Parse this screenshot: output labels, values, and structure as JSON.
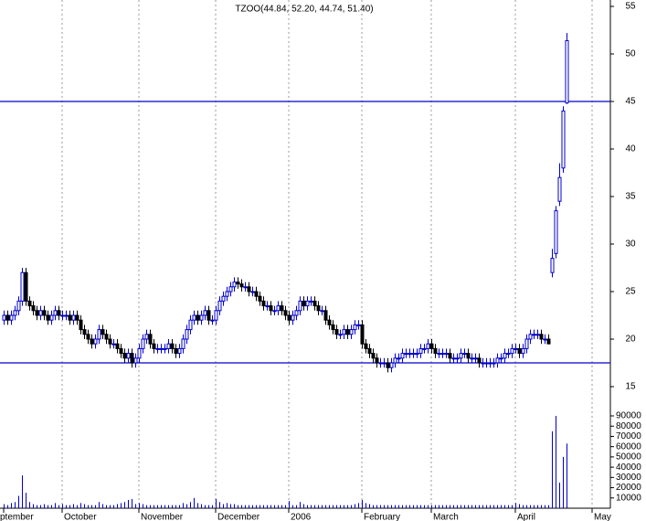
{
  "chart_data": {
    "type": "candlestick",
    "title": "TZOO(44.84, 52.20, 44.74, 51.40)",
    "categories": [
      "ptember",
      null,
      null,
      null,
      null,
      null,
      null,
      null,
      null,
      null,
      null,
      null,
      null,
      null,
      null,
      null,
      "October",
      null,
      null,
      null,
      null,
      null,
      null,
      null,
      null,
      null,
      null,
      null,
      null,
      null,
      null,
      null,
      null,
      null,
      null,
      null,
      null,
      "November",
      null,
      null,
      null,
      null,
      null,
      null,
      null,
      null,
      null,
      null,
      null,
      null,
      null,
      null,
      null,
      null,
      null,
      null,
      null,
      null,
      "December",
      null,
      null,
      null,
      null,
      null,
      null,
      null,
      null,
      null,
      null,
      null,
      null,
      null,
      null,
      null,
      null,
      null,
      null,
      null,
      "2006",
      null,
      null,
      null,
      null,
      null,
      null,
      null,
      null,
      null,
      null,
      null,
      null,
      null,
      null,
      null,
      null,
      null,
      null,
      null,
      "February",
      null,
      null,
      null,
      null,
      null,
      null,
      null,
      null,
      null,
      null,
      null,
      null,
      null,
      null,
      null,
      null,
      null,
      null,
      "March",
      null,
      null,
      null,
      null,
      null,
      null,
      null,
      null,
      null,
      null,
      null,
      null,
      null,
      null,
      null,
      null,
      null,
      null,
      null,
      null,
      null,
      null,
      "April",
      null,
      null,
      null,
      null,
      null,
      null,
      null,
      null,
      null,
      null,
      null,
      null,
      null,
      null,
      null,
      null,
      null,
      null,
      null,
      null,
      "May"
    ],
    "open": [
      22,
      22.5,
      22,
      22.5,
      23,
      24,
      27,
      24,
      23.5,
      23,
      22.5,
      23,
      22.5,
      22,
      22.5,
      23,
      22.5,
      22.5,
      22.5,
      22,
      22.5,
      22,
      21,
      20.5,
      20,
      19.5,
      20,
      21,
      20.5,
      20,
      19.5,
      19.5,
      19,
      18.5,
      18,
      18.5,
      17.5,
      18,
      19,
      20,
      20.5,
      19.5,
      19,
      19,
      19,
      19,
      19.5,
      19,
      18.5,
      19,
      20,
      21,
      22,
      22.5,
      22,
      22.5,
      23,
      22,
      22,
      23,
      24,
      24.5,
      25,
      25.5,
      26,
      25.8,
      25.5,
      25.5,
      25,
      25,
      24.5,
      24,
      23.5,
      23.5,
      23,
      23,
      23.5,
      23,
      22.5,
      22,
      22.5,
      23,
      24,
      23.5,
      24,
      24,
      23.5,
      23,
      23,
      22,
      21.5,
      21,
      20.5,
      20.5,
      21,
      20.5,
      21,
      21.5,
      21.5,
      19.5,
      19,
      18.5,
      18,
      17.5,
      17.5,
      17.5,
      17,
      17.5,
      18,
      18,
      18.5,
      18.5,
      18.5,
      18.5,
      18.5,
      19,
      19,
      19.5,
      19,
      18.5,
      18.5,
      18.5,
      18.5,
      18,
      18,
      18,
      18.5,
      18.5,
      18,
      18,
      18,
      17.5,
      17.5,
      17.5,
      17.5,
      17.5,
      18,
      18,
      18.5,
      18.5,
      19,
      19,
      18.5,
      19,
      20,
      20.5,
      20.5,
      20.5,
      20,
      20,
      27,
      29,
      34.5,
      38,
      44.84,
      null,
      null,
      null,
      null,
      null,
      null,
      null
    ],
    "high": [
      23,
      23,
      23,
      23.5,
      24.5,
      27.5,
      27.5,
      24.5,
      24,
      23.5,
      23.5,
      23.5,
      23,
      23,
      23.5,
      23.5,
      23,
      23,
      23,
      23,
      23,
      22.5,
      21.5,
      21,
      20.5,
      20.5,
      21.5,
      21.5,
      21,
      20.5,
      20,
      20,
      19.5,
      19,
      19,
      19,
      18.5,
      19.5,
      20.5,
      21,
      21,
      20,
      19.5,
      19.5,
      19.5,
      20,
      20,
      19.5,
      19.5,
      20.5,
      21.5,
      22.5,
      23,
      23,
      23,
      23.5,
      23.5,
      22.5,
      23.5,
      24.5,
      25,
      25.5,
      26,
      26.5,
      26.5,
      26.3,
      26,
      26,
      25.5,
      25.5,
      25,
      24.5,
      24,
      24,
      23.5,
      24,
      24,
      23.5,
      23,
      23,
      23.5,
      24.5,
      24.5,
      24.5,
      24.5,
      24.5,
      24,
      23.5,
      23.5,
      22.5,
      22,
      21.5,
      21,
      21.5,
      21.5,
      21.5,
      22,
      22,
      22,
      20,
      19.5,
      19,
      18.5,
      18,
      18,
      18,
      18,
      18.5,
      18.5,
      19,
      19,
      19,
      19,
      19,
      19.5,
      19.5,
      20,
      20,
      19.5,
      19,
      19,
      19,
      19,
      18.5,
      18.5,
      19,
      19,
      19,
      18.5,
      18.5,
      18.5,
      18,
      18,
      18,
      18,
      18.5,
      18.5,
      19,
      19,
      19.5,
      19.5,
      19.5,
      19.5,
      20.5,
      21,
      21,
      21,
      21,
      20.5,
      20.5,
      29.5,
      34,
      38.5,
      44.5,
      52.2,
      null,
      null,
      null,
      null,
      null,
      null,
      null
    ],
    "low": [
      21.5,
      21.5,
      21.5,
      22,
      22.5,
      23.5,
      23.5,
      23,
      22.5,
      22,
      22,
      22,
      21.5,
      21.5,
      22,
      22,
      22,
      22,
      21.5,
      21.5,
      21.5,
      20.5,
      20,
      19.5,
      19,
      19,
      19.5,
      20,
      19.5,
      19,
      19,
      18.5,
      18,
      17.5,
      17.5,
      17,
      17,
      17.5,
      18.5,
      19.5,
      19,
      18.5,
      18.5,
      18.5,
      18.5,
      18.5,
      18.5,
      18,
      18,
      18.5,
      19.5,
      20.5,
      21.5,
      21.5,
      21.5,
      22,
      21.5,
      21.5,
      21.5,
      22.5,
      23.5,
      24,
      24.5,
      25,
      25.3,
      25,
      25,
      24.5,
      24.5,
      24,
      23.5,
      23,
      23,
      22.5,
      22.5,
      22.5,
      22.5,
      22,
      21.5,
      21.5,
      22,
      22.5,
      23,
      23,
      23.5,
      23,
      22.5,
      22.5,
      21.5,
      21,
      20.5,
      20,
      20,
      20,
      20,
      20,
      20.5,
      21,
      19,
      18.5,
      18,
      17.5,
      17,
      17,
      17,
      16.5,
      16.5,
      17,
      17.5,
      17.5,
      18,
      18,
      18,
      18,
      18,
      18.5,
      18.5,
      18.5,
      18,
      18,
      18,
      18,
      17.5,
      17.5,
      17.5,
      17.5,
      18,
      17.5,
      17.5,
      17.5,
      17,
      17,
      17,
      17,
      17,
      17,
      17.5,
      17.5,
      18,
      18,
      18.5,
      18,
      18,
      18.5,
      19.5,
      20,
      20,
      19.5,
      19.5,
      19.5,
      26.5,
      28.5,
      34,
      37.5,
      44.74,
      null,
      null,
      null,
      null,
      null,
      null,
      null
    ],
    "close": [
      22.5,
      22,
      22.5,
      23,
      24,
      27,
      24,
      23.5,
      23,
      22.5,
      23,
      22.5,
      22,
      22.5,
      23,
      22.5,
      22.5,
      22.5,
      22,
      22.5,
      22,
      21,
      20.5,
      20,
      19.5,
      20,
      21,
      20.5,
      20,
      19.5,
      19.5,
      19,
      18.5,
      18,
      18.5,
      17.5,
      18,
      19,
      20,
      20.5,
      19.5,
      19,
      19,
      19,
      19,
      19.5,
      19,
      18.5,
      19,
      20,
      21,
      22,
      22.5,
      22,
      22.5,
      23,
      22,
      22,
      23,
      24,
      24.5,
      25,
      25.5,
      26,
      25.8,
      25.5,
      25.5,
      25,
      25,
      24.5,
      24,
      23.5,
      23.5,
      23,
      23,
      23.5,
      23,
      22.5,
      22,
      22.5,
      23,
      24,
      23.5,
      24,
      24,
      23.5,
      23,
      23,
      22,
      21.5,
      21,
      20.5,
      20.5,
      21,
      20.5,
      21,
      21.5,
      21.5,
      19.5,
      19,
      18.5,
      18,
      17.5,
      17.5,
      17.5,
      17,
      17.5,
      18,
      18,
      18.5,
      18.5,
      18.5,
      18.5,
      18.5,
      19,
      19,
      19.5,
      19,
      18.5,
      18.5,
      18.5,
      18.5,
      18,
      18,
      18,
      18.5,
      18.5,
      18,
      18,
      18,
      17.5,
      17.5,
      17.5,
      17.5,
      17.5,
      18,
      18,
      18.5,
      18.5,
      19,
      19,
      18.5,
      19,
      20,
      20.5,
      20.5,
      20.5,
      20,
      20,
      19.5,
      28.5,
      33.5,
      37,
      44,
      51.4,
      null,
      null,
      null,
      null,
      null,
      null,
      null
    ],
    "volume": [
      4000,
      3000,
      5000,
      6000,
      12000,
      32000,
      15000,
      6000,
      4000,
      3000,
      3000,
      4000,
      3000,
      3000,
      5000,
      3000,
      4000,
      3000,
      3000,
      4000,
      3000,
      5000,
      4000,
      3000,
      3000,
      3000,
      6000,
      4000,
      3000,
      3000,
      3000,
      4000,
      5000,
      6000,
      8000,
      9000,
      4000,
      5000,
      4000,
      3000,
      3000,
      3000,
      3000,
      3000,
      3000,
      3000,
      3000,
      3000,
      3000,
      5000,
      4000,
      6000,
      10000,
      5000,
      4000,
      3000,
      3000,
      3000,
      9000,
      6000,
      4000,
      5000,
      4000,
      4000,
      3000,
      3000,
      3000,
      3000,
      3000,
      3000,
      3000,
      3000,
      3000,
      3000,
      3000,
      3000,
      3000,
      3000,
      7000,
      3000,
      3000,
      6000,
      4000,
      3000,
      3000,
      3000,
      3000,
      3000,
      3000,
      3000,
      3000,
      3000,
      3000,
      3000,
      3000,
      3000,
      4000,
      5000,
      8000,
      5000,
      4000,
      3000,
      3000,
      3000,
      3000,
      3000,
      3000,
      3000,
      3000,
      3000,
      3000,
      3000,
      3000,
      3000,
      3000,
      3000,
      3000,
      3000,
      3000,
      3000,
      3000,
      3000,
      3000,
      3000,
      3000,
      3000,
      3000,
      3000,
      3000,
      3000,
      3000,
      3000,
      3000,
      3000,
      3000,
      3000,
      3000,
      3000,
      3000,
      3000,
      5000,
      4000,
      3000,
      3000,
      3000,
      3000,
      3000,
      3000,
      3000,
      3000,
      75000,
      90000,
      25000,
      50000,
      63000,
      null,
      null,
      null,
      null,
      null,
      null,
      null
    ],
    "ylim": [
      15,
      55
    ],
    "yticks": [
      15,
      20,
      25,
      30,
      35,
      40,
      45,
      50,
      55
    ],
    "y2lim": [
      0,
      90000
    ],
    "y2ticks": [
      10000,
      20000,
      30000,
      40000,
      50000,
      60000,
      70000,
      80000,
      90000
    ],
    "hlines": [
      45,
      17.5
    ],
    "hline_color": "#0000cc",
    "up_color": "#0000cc",
    "down_color": "#000000",
    "volume_color": "#0000cc",
    "grid": true
  }
}
